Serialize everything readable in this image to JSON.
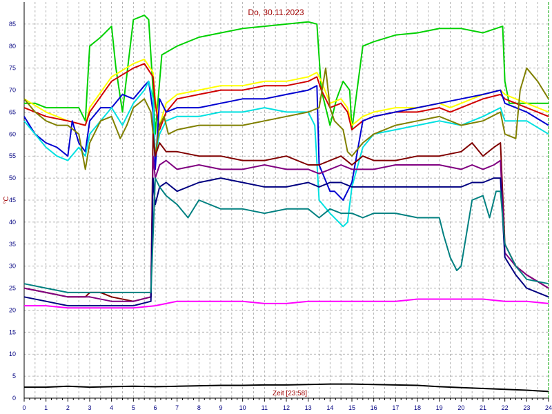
{
  "chart_data": {
    "type": "line",
    "title": "Do, 30.11.2023",
    "xlabel": "Zeit [23:58]",
    "ylabel": "°C",
    "xlim": [
      0,
      24
    ],
    "ylim": [
      0,
      90
    ],
    "x_ticks": [
      0,
      1,
      2,
      3,
      4,
      5,
      6,
      7,
      8,
      9,
      10,
      11,
      12,
      13,
      14,
      15,
      16,
      17,
      18,
      19,
      20,
      21,
      22,
      23,
      24
    ],
    "y_ticks": [
      0,
      5,
      10,
      15,
      20,
      25,
      30,
      35,
      40,
      45,
      50,
      55,
      60,
      65,
      70,
      75,
      80,
      85
    ],
    "grid": true,
    "colors": {
      "frame": "#000000",
      "grid": "#a0a0a0",
      "ticks": "#000080",
      "title": "#a00000",
      "right_axis": "#00a000"
    },
    "series": [
      {
        "color": "#00d000",
        "x": [
          0,
          0.5,
          1,
          1.5,
          2,
          2.5,
          2.8,
          3,
          3.5,
          4,
          4.2,
          4.5,
          5,
          5.5,
          5.7,
          5.9,
          6,
          6.3,
          7,
          8,
          9,
          10,
          11,
          12,
          13,
          13.4,
          13.6,
          14,
          14.3,
          14.6,
          14.9,
          15,
          15.5,
          16,
          17,
          18,
          19,
          20,
          21,
          21.9,
          22,
          22.2,
          22.5,
          23,
          24
        ],
        "y": [
          67,
          67,
          66,
          66,
          66,
          66,
          63,
          80,
          82,
          84.5,
          75,
          65,
          86,
          87,
          86,
          70,
          60,
          78,
          80,
          82,
          83,
          84,
          84.5,
          85,
          85.5,
          85,
          70,
          62,
          68,
          72,
          70,
          61,
          80,
          81,
          82.5,
          83,
          84,
          84,
          83,
          84.5,
          72,
          67,
          67,
          67,
          67
        ]
      },
      {
        "color": "#ffff00",
        "x": [
          0,
          1,
          2,
          2.8,
          3,
          4,
          5,
          5.5,
          5.9,
          6,
          6.2,
          6.5,
          7,
          8,
          9,
          10,
          11,
          12,
          13,
          13.4,
          13.6,
          14,
          14.5,
          14.8,
          15,
          15.5,
          16,
          17,
          18,
          19,
          19.5,
          20,
          21,
          21.8,
          22,
          22.5,
          23,
          24
        ],
        "y": [
          68,
          65,
          63,
          62,
          66,
          73,
          76,
          77,
          74,
          68,
          62,
          67,
          69,
          70,
          71,
          71,
          72,
          72,
          73,
          74,
          72,
          67,
          68,
          66,
          62,
          64,
          65,
          66,
          66,
          67,
          66,
          67,
          69,
          70,
          69,
          68,
          67,
          65
        ]
      },
      {
        "color": "#d00000",
        "x": [
          0,
          1,
          2,
          2.8,
          3,
          4,
          5,
          5.5,
          5.9,
          6,
          6.2,
          6.5,
          7,
          8,
          9,
          10,
          11,
          12,
          13,
          13.4,
          13.6,
          14,
          14.5,
          14.8,
          15,
          15.5,
          16,
          17,
          18,
          19,
          19.5,
          20,
          21,
          21.8,
          22,
          22.5,
          23,
          24
        ],
        "y": [
          66,
          64,
          63,
          62,
          65,
          72,
          75,
          76,
          73,
          67,
          61,
          65,
          68,
          69,
          70,
          70,
          71,
          71,
          72,
          73,
          70,
          66,
          67,
          65,
          61,
          63,
          64,
          65,
          65,
          66,
          65,
          66,
          68,
          69,
          68,
          67,
          66,
          64
        ]
      },
      {
        "color": "#0000d0",
        "x": [
          0,
          0.5,
          1,
          1.5,
          2,
          2.2,
          2.5,
          2.8,
          3,
          3.5,
          4,
          4.5,
          5,
          5.5,
          5.7,
          5.9,
          6,
          6.2,
          6.5,
          7,
          8,
          9,
          10,
          11,
          12,
          13,
          13.4,
          13.5,
          14,
          14.2,
          14.4,
          14.6,
          14.8,
          15,
          15.5,
          16,
          17,
          18,
          19,
          20,
          21,
          21.8,
          22,
          22.5,
          23,
          24
        ],
        "y": [
          64,
          60,
          58,
          57,
          55,
          63,
          58,
          56,
          63,
          66,
          66,
          69,
          68,
          71,
          72,
          65,
          52,
          68,
          65,
          66,
          66,
          67,
          68,
          68,
          69,
          70,
          71,
          53,
          47,
          47,
          46,
          45,
          47,
          49,
          63,
          64,
          65,
          66,
          67,
          68,
          69,
          70,
          67,
          66,
          65,
          62
        ]
      },
      {
        "color": "#00e0e0",
        "x": [
          0,
          0.5,
          1,
          1.5,
          2,
          2.5,
          2.8,
          3,
          3.5,
          4,
          4.5,
          5,
          5.5,
          5.7,
          5.9,
          6,
          6.2,
          6.5,
          7,
          8,
          9,
          10,
          11,
          12,
          13,
          13.3,
          13.5,
          14,
          14.4,
          14.6,
          14.8,
          15,
          15.5,
          16,
          17,
          18,
          19,
          20,
          21,
          21.8,
          22,
          22.5,
          23,
          24
        ],
        "y": [
          63,
          60,
          57,
          55,
          54,
          57,
          55,
          60,
          63,
          66,
          62,
          67,
          70,
          72,
          68,
          55,
          60,
          63,
          64,
          64,
          65,
          65,
          66,
          65,
          65,
          62,
          45,
          42,
          40,
          39,
          40,
          48,
          57,
          60,
          61,
          62,
          63,
          62,
          64,
          66,
          63,
          63,
          63,
          60
        ]
      },
      {
        "color": "#808000",
        "x": [
          0,
          0.5,
          1,
          1.5,
          2,
          2.5,
          2.8,
          3,
          3.5,
          4,
          4.4,
          4.7,
          5,
          5.5,
          5.8,
          6,
          6.2,
          6.4,
          6.6,
          7,
          8,
          9,
          10,
          11,
          12,
          13,
          13.5,
          13.8,
          14,
          14.2,
          14.4,
          14.6,
          14.8,
          15,
          15.5,
          16,
          17,
          18,
          19,
          20,
          21,
          21.8,
          22,
          22.5,
          22.7,
          23,
          23.5,
          24
        ],
        "y": [
          68,
          65,
          63,
          62,
          62,
          60,
          52,
          58,
          63,
          64,
          59,
          62,
          66,
          68,
          65,
          55,
          62,
          64,
          60,
          61,
          62,
          62,
          62,
          63,
          64,
          65,
          66,
          75,
          66,
          63,
          62,
          61,
          56,
          55,
          58,
          60,
          62,
          63,
          64,
          62,
          63,
          65,
          60,
          59,
          70,
          75,
          72,
          68
        ]
      },
      {
        "color": "#800000",
        "x": [
          0,
          1,
          2,
          2.8,
          3,
          3.5,
          4,
          5,
          5.8,
          5.9,
          6,
          6.2,
          6.5,
          7,
          8,
          9,
          10,
          11,
          12,
          13,
          13.5,
          14,
          14.5,
          15,
          15.5,
          16,
          17,
          18,
          19,
          20,
          20.5,
          21,
          21.5,
          21.8,
          22,
          22.5,
          23,
          24
        ],
        "y": [
          25,
          24,
          23,
          23,
          24,
          24,
          23,
          22,
          23,
          60,
          55,
          58,
          56,
          56,
          55,
          55,
          54,
          54,
          55,
          53,
          53,
          54,
          55,
          53,
          55,
          54,
          54,
          55,
          55,
          56,
          58,
          55,
          57,
          58,
          35,
          30,
          28,
          25
        ]
      },
      {
        "color": "#800080",
        "x": [
          0,
          1,
          2,
          2.8,
          3,
          4,
          5,
          5.8,
          5.9,
          6,
          6.2,
          6.5,
          7,
          8,
          9,
          10,
          11,
          12,
          13,
          13.5,
          14,
          14.5,
          15,
          15.5,
          16,
          17,
          18,
          19,
          20,
          20.5,
          21,
          21.5,
          21.8,
          22,
          22.5,
          23,
          24
        ],
        "y": [
          25,
          24,
          23,
          23,
          23,
          22,
          22,
          23,
          55,
          50,
          53,
          54,
          52,
          53,
          52,
          52,
          53,
          52,
          52,
          51,
          52,
          53,
          52,
          52,
          52,
          53,
          53,
          53,
          52,
          53,
          52,
          53,
          54,
          33,
          30,
          28,
          25
        ]
      },
      {
        "color": "#000080",
        "x": [
          0,
          1,
          2,
          2.8,
          3,
          4,
          5,
          5.8,
          5.9,
          6,
          6.2,
          6.5,
          7,
          8,
          9,
          10,
          11,
          12,
          13,
          13.5,
          14,
          14.5,
          15,
          15.5,
          16,
          17,
          18,
          19,
          20,
          20.5,
          21,
          21.5,
          21.8,
          22,
          22.5,
          23,
          24
        ],
        "y": [
          23,
          22,
          21,
          21,
          21,
          21,
          21,
          22,
          50,
          44,
          48,
          49,
          47,
          49,
          50,
          49,
          48,
          48,
          49,
          48,
          49,
          49,
          48,
          48,
          48,
          48,
          48,
          48,
          48,
          49,
          49,
          50,
          50,
          32,
          28,
          25,
          23
        ]
      },
      {
        "color": "#008080",
        "x": [
          0,
          1,
          2,
          2.8,
          3,
          4,
          5,
          5.8,
          6,
          6.2,
          6.5,
          7,
          7.5,
          8,
          9,
          10,
          11,
          12,
          13,
          13.5,
          14,
          14.5,
          15,
          15.5,
          16,
          17,
          18,
          19,
          19.2,
          19.5,
          19.8,
          20,
          20.5,
          21,
          21.3,
          21.6,
          21.8,
          22,
          22.5,
          23,
          24
        ],
        "y": [
          26,
          25,
          24,
          24,
          24,
          24,
          24,
          24,
          50,
          48,
          46,
          44,
          41,
          45,
          43,
          43,
          42,
          43,
          43,
          41,
          43,
          42,
          42,
          41,
          42,
          42,
          41,
          41,
          37,
          32,
          29,
          30,
          45,
          46,
          41,
          47,
          47,
          35,
          30,
          27,
          26
        ]
      },
      {
        "color": "#ff00ff",
        "x": [
          0,
          1,
          2,
          3,
          4,
          5,
          6,
          6.5,
          7,
          8,
          9,
          10,
          11,
          12,
          13,
          14,
          15,
          16,
          17,
          18,
          19,
          20,
          21,
          22,
          23,
          24
        ],
        "y": [
          21,
          21,
          20.5,
          20.5,
          20.5,
          20.5,
          21,
          21.5,
          22,
          22,
          22,
          22,
          21.5,
          21.5,
          22,
          22,
          22,
          22,
          22,
          22.5,
          22.5,
          22.5,
          22.5,
          22,
          22,
          21.5
        ]
      },
      {
        "color": "#000000",
        "x": [
          0,
          1,
          2,
          3,
          4,
          5,
          6,
          7,
          8,
          9,
          10,
          11,
          12,
          13,
          14,
          15,
          16,
          17,
          18,
          19,
          20,
          21,
          22,
          23,
          24
        ],
        "y": [
          2.5,
          2.5,
          2.7,
          2.5,
          2.6,
          2.7,
          2.6,
          2.7,
          2.8,
          2.9,
          2.9,
          3.0,
          3.0,
          3.1,
          3.2,
          3.2,
          3.1,
          3.0,
          2.9,
          2.6,
          2.4,
          2.2,
          2.0,
          1.8,
          1.5
        ]
      }
    ]
  }
}
